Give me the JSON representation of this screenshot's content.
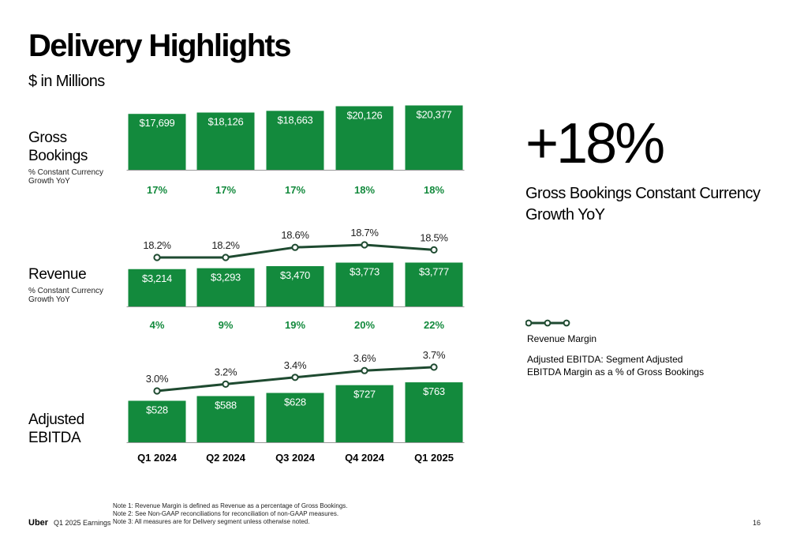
{
  "title": "Delivery Highlights",
  "subtitle": "$ in Millions",
  "colors": {
    "bar": "#138a3d",
    "growth_text": "#138a3d",
    "margin_line": "#1e4a30",
    "axis": "#999999"
  },
  "sections": {
    "gross_bookings": {
      "label": "Gross Bookings",
      "sub": "% Constant Currency Growth YoY"
    },
    "revenue": {
      "label": "Revenue",
      "sub": "% Constant Currency Growth YoY"
    },
    "ebitda": {
      "label": "Adjusted EBITDA"
    }
  },
  "hero": {
    "value": "+18%",
    "caption": "Gross Bookings Constant Currency Growth YoY"
  },
  "legend": {
    "revenue_margin": "Revenue Margin",
    "ebitda_note": "Adjusted EBITDA: Segment Adjusted EBITDA Margin as a % of Gross Bookings"
  },
  "footer": {
    "logo": "Uber",
    "doc": "Q1 2025 Earnings",
    "notes": [
      "Note 1: Revenue Margin is defined as Revenue as a percentage of Gross Bookings.",
      "Note 2: See Non-GAAP reconciliations for reconciliation of non-GAAP measures.",
      "Note 3: All measures are for Delivery segment unless otherwise noted."
    ],
    "page": "16"
  },
  "chart_data": [
    {
      "type": "bar",
      "categories": [
        "Q1 2024",
        "Q2 2024",
        "Q3 2024",
        "Q4 2024",
        "Q1 2025"
      ],
      "values": [
        17699,
        18126,
        18663,
        20126,
        20377
      ],
      "value_labels": [
        "$17,699",
        "$18,126",
        "$18,663",
        "$20,126",
        "$20,377"
      ],
      "growth_labels": [
        "17%",
        "17%",
        "17%",
        "18%",
        "18%"
      ],
      "growth_values": [
        17,
        17,
        17,
        18,
        18
      ]
    },
    {
      "type": "bar",
      "categories": [
        "Q1 2024",
        "Q2 2024",
        "Q3 2024",
        "Q4 2024",
        "Q1 2025"
      ],
      "values": [
        3214,
        3293,
        3470,
        3773,
        3777
      ],
      "value_labels": [
        "$3,214",
        "$3,293",
        "$3,470",
        "$3,773",
        "$3,777"
      ],
      "growth_labels": [
        "4%",
        "9%",
        "19%",
        "20%",
        "22%"
      ],
      "growth_values": [
        4,
        9,
        19,
        20,
        22
      ],
      "line": {
        "name": "Revenue Margin",
        "values": [
          18.2,
          18.2,
          18.6,
          18.7,
          18.5
        ],
        "labels": [
          "18.2%",
          "18.2%",
          "18.6%",
          "18.7%",
          "18.5%"
        ]
      }
    },
    {
      "type": "bar",
      "categories": [
        "Q1 2024",
        "Q2 2024",
        "Q3 2024",
        "Q4 2024",
        "Q1 2025"
      ],
      "values": [
        528,
        588,
        628,
        727,
        763
      ],
      "value_labels": [
        "$528",
        "$588",
        "$628",
        "$727",
        "$763"
      ],
      "line": {
        "values": [
          3.0,
          3.2,
          3.4,
          3.6,
          3.7
        ],
        "labels": [
          "3.0%",
          "3.2%",
          "3.4%",
          "3.6%",
          "3.7%"
        ]
      }
    }
  ]
}
